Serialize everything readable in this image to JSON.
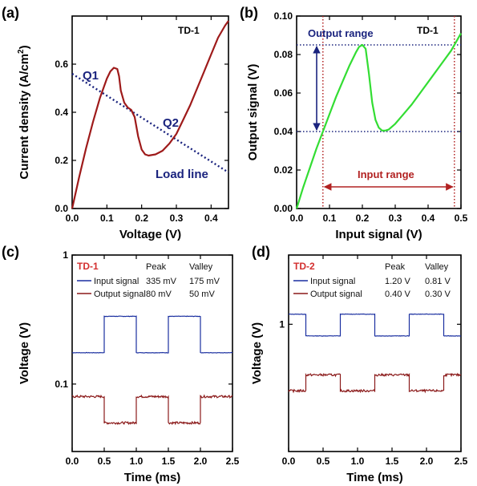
{
  "colors": {
    "td1_curve": "#9e1a1a",
    "load_line": "#1a237e",
    "transfer_curve": "#33dd33",
    "output_range": "#1a237e",
    "input_range": "#b22222",
    "input_signal": "#1a2fa0",
    "output_signal": "#8b1a1a",
    "tag_red": "#d32f2f"
  },
  "chart_data": [
    {
      "panel": "(a)",
      "type": "line",
      "xlabel": "Voltage (V)",
      "ylabel": "Current density (A/cm²)",
      "ylabel_main": "Current density (A/cm",
      "ylabel_sup": "2",
      "ylabel_tail": ")",
      "xlim": [
        0,
        0.45
      ],
      "ylim": [
        0,
        0.8
      ],
      "xticks": [
        "0.0",
        "0.1",
        "0.2",
        "0.3",
        "0.4"
      ],
      "xtick_values": [
        0,
        0.1,
        0.2,
        0.3,
        0.4
      ],
      "yticks": [
        "0.0",
        "0.2",
        "0.4",
        "0.6"
      ],
      "ytick_values": [
        0,
        0.2,
        0.4,
        0.6
      ],
      "series": [
        {
          "name": "TD-1",
          "x": [
            0,
            0.02,
            0.04,
            0.06,
            0.08,
            0.1,
            0.11,
            0.12,
            0.13,
            0.135,
            0.14,
            0.15,
            0.16,
            0.17,
            0.18,
            0.19,
            0.2,
            0.21,
            0.22,
            0.24,
            0.26,
            0.28,
            0.3,
            0.32,
            0.34,
            0.36,
            0.38,
            0.4,
            0.42,
            0.44,
            0.45
          ],
          "y": [
            0,
            0.13,
            0.25,
            0.36,
            0.46,
            0.54,
            0.57,
            0.585,
            0.58,
            0.55,
            0.49,
            0.44,
            0.42,
            0.41,
            0.38,
            0.3,
            0.245,
            0.225,
            0.22,
            0.225,
            0.24,
            0.27,
            0.31,
            0.37,
            0.43,
            0.5,
            0.57,
            0.64,
            0.71,
            0.76,
            0.78
          ]
        },
        {
          "name": "Load line",
          "x": [
            0,
            0.45
          ],
          "y": [
            0.56,
            0.15
          ]
        }
      ],
      "annotations": {
        "device": "TD-1",
        "q1": "Q1",
        "q2": "Q2",
        "load_line": "Load line"
      }
    },
    {
      "panel": "(b)",
      "type": "line",
      "xlabel": "Input signal (V)",
      "ylabel": "Output signal (V)",
      "xlim": [
        0,
        0.5
      ],
      "ylim": [
        0,
        0.1
      ],
      "xticks": [
        "0.0",
        "0.1",
        "0.2",
        "0.3",
        "0.4",
        "0.5"
      ],
      "xtick_values": [
        0,
        0.1,
        0.2,
        0.3,
        0.4,
        0.5
      ],
      "yticks": [
        "0.00",
        "0.02",
        "0.04",
        "0.06",
        "0.08",
        "0.10"
      ],
      "ytick_values": [
        0,
        0.02,
        0.04,
        0.06,
        0.08,
        0.1
      ],
      "series": [
        {
          "name": "TD-1",
          "x": [
            0,
            0.02,
            0.04,
            0.06,
            0.08,
            0.1,
            0.12,
            0.14,
            0.16,
            0.18,
            0.19,
            0.2,
            0.21,
            0.22,
            0.23,
            0.24,
            0.25,
            0.26,
            0.27,
            0.28,
            0.3,
            0.32,
            0.35,
            0.38,
            0.41,
            0.44,
            0.47,
            0.5
          ],
          "y": [
            0,
            0.011,
            0.021,
            0.031,
            0.04,
            0.049,
            0.058,
            0.066,
            0.074,
            0.081,
            0.084,
            0.085,
            0.083,
            0.07,
            0.055,
            0.046,
            0.042,
            0.0405,
            0.0405,
            0.041,
            0.044,
            0.048,
            0.054,
            0.061,
            0.068,
            0.075,
            0.082,
            0.091
          ]
        }
      ],
      "annotations": {
        "device": "TD-1",
        "output_range": "Output range",
        "input_range": "Input range",
        "output_high": 0.085,
        "output_low": 0.04,
        "input_low": 0.08,
        "input_high": 0.48
      }
    },
    {
      "panel": "(c)",
      "type": "line",
      "xlabel": "Time (ms)",
      "ylabel": "Voltage (V)",
      "yscale": "log",
      "xlim": [
        0,
        2.5
      ],
      "ylim": [
        0.03,
        1
      ],
      "xticks": [
        "0.0",
        "0.5",
        "1.0",
        "1.5",
        "2.0",
        "2.5"
      ],
      "xtick_values": [
        0,
        0.5,
        1,
        1.5,
        2,
        2.5
      ],
      "yticks": [
        "1",
        "0.1"
      ],
      "ytick_values": [
        1,
        0.1
      ],
      "tag": "TD-1",
      "headers": [
        "Peak",
        "Valley"
      ],
      "series": [
        {
          "name": "Input signal",
          "peak": "335 mV",
          "valley": "175 mV",
          "high": 0.335,
          "low": 0.175,
          "transitions": [
            0,
            0.5,
            1.0,
            1.5,
            2.0,
            2.5
          ],
          "starts_high": false
        },
        {
          "name": "Output signal",
          "peak": "80 mV",
          "valley": "50 mV",
          "high": 0.08,
          "low": 0.05,
          "transitions": [
            0,
            0.5,
            1.0,
            1.5,
            2.0,
            2.5
          ],
          "starts_high": true
        }
      ]
    },
    {
      "panel": "(d)",
      "type": "line",
      "xlabel": "Time (ms)",
      "ylabel": "Voltage (V)",
      "yscale": "log",
      "xlim": [
        0,
        2.5
      ],
      "ylim": [
        0.1,
        3.5
      ],
      "xticks": [
        "0.0",
        "0.5",
        "1.0",
        "1.5",
        "2.0",
        "2.5"
      ],
      "xtick_values": [
        0,
        0.5,
        1,
        1.5,
        2,
        2.5
      ],
      "yticks": [
        "1"
      ],
      "ytick_values": [
        1
      ],
      "tag": "TD-2",
      "headers": [
        "Peak",
        "Valley"
      ],
      "series": [
        {
          "name": "Input signal",
          "peak": "1.20 V",
          "valley": "0.81 V",
          "high": 1.2,
          "low": 0.81,
          "transitions": [
            0,
            0.25,
            0.75,
            1.25,
            1.75,
            2.25,
            2.5
          ],
          "starts_high": true
        },
        {
          "name": "Output signal",
          "peak": "0.40 V",
          "valley": "0.30 V",
          "high": 0.4,
          "low": 0.3,
          "transitions": [
            0,
            0.25,
            0.75,
            1.25,
            1.75,
            2.25,
            2.5
          ],
          "starts_high": false
        }
      ]
    }
  ]
}
